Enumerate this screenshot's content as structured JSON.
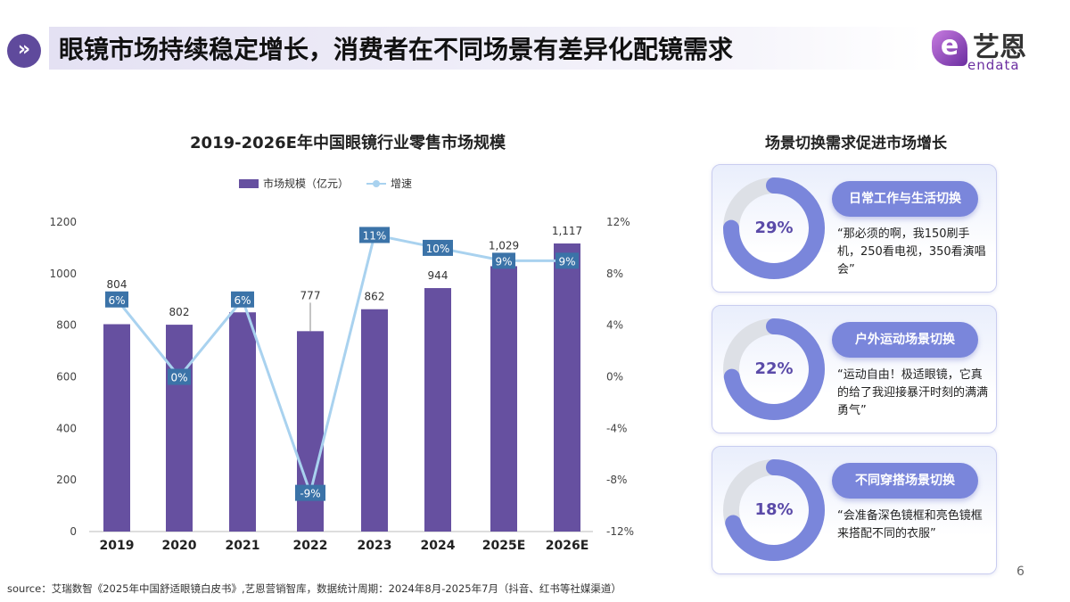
{
  "header": {
    "icon": "double-chevron-right-icon",
    "title": "眼镜市场持续稳定增长，消费者在不同场景有差异化配镜需求"
  },
  "logo": {
    "mark": "e",
    "cn": "艺恩",
    "en": "endata"
  },
  "chart_data": {
    "type": "bar+line",
    "title": "2019-2026E年中国眼镜行业零售市场规模",
    "categories": [
      "2019",
      "2020",
      "2021",
      "2022",
      "2023",
      "2024",
      "2025E",
      "2026E"
    ],
    "series": [
      {
        "name": "市场规模（亿元）",
        "type": "bar",
        "axis": "left",
        "values": [
          804,
          802,
          850,
          777,
          862,
          944,
          1029,
          1117
        ],
        "labels": [
          "804",
          "802",
          "",
          "777",
          "862",
          "944",
          "1,029",
          "1,117"
        ],
        "color": "#6650a0"
      },
      {
        "name": "增速",
        "type": "line",
        "axis": "right",
        "values": [
          6,
          0,
          6,
          -9,
          11,
          10,
          9,
          9
        ],
        "labels": [
          "6%",
          "0%",
          "6%",
          "-9%",
          "11%",
          "10%",
          "9%",
          "9%"
        ],
        "color": "#a9d2ef"
      }
    ],
    "yleft": {
      "range": [
        0,
        1200
      ],
      "ticks": [
        "0",
        "200",
        "400",
        "600",
        "800",
        "1000",
        "1200"
      ]
    },
    "yright": {
      "range": [
        -12,
        12
      ],
      "ticks": [
        "-12%",
        "-8%",
        "-4%",
        "0%",
        "4%",
        "8%",
        "12%"
      ]
    },
    "legend": "top",
    "grid": false
  },
  "right": {
    "title": "场景切换需求促进市场增长",
    "cards": [
      {
        "pct": "29%",
        "label": "日常工作与生活切换",
        "quote": "“那必须的啊，我150刷手机，250看电视，350看演唱会”"
      },
      {
        "pct": "22%",
        "label": "户外运动场景切换",
        "quote": "“运动自由！极适眼镜，它真的给了我迎接暴汗时刻的满满勇气”"
      },
      {
        "pct": "18%",
        "label": "不同穿搭场景切换",
        "quote": "“会准备深色镜框和亮色镜框来搭配不同的衣服”"
      }
    ]
  },
  "page": "6",
  "source": "source：艾瑞数智《2025年中国舒适眼镜白皮书》,艺恩营销智库，数据统计周期：2024年8月-2025年7月（抖音、红书等社媒渠道）"
}
